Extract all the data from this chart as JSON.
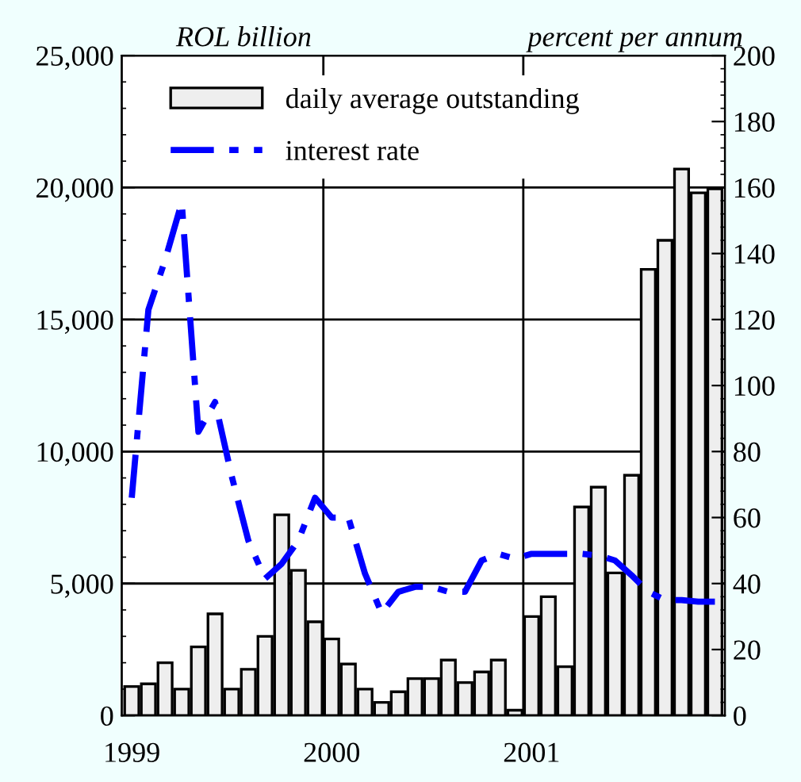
{
  "chart_data": {
    "type": "bar",
    "ylabel": "ROL billion",
    "y2label": "percent per annum",
    "categories": [
      "1999",
      null,
      null,
      null,
      null,
      null,
      null,
      null,
      null,
      null,
      null,
      null,
      "2000",
      null,
      null,
      null,
      null,
      null,
      null,
      null,
      null,
      null,
      null,
      null,
      "2001",
      null,
      null,
      null,
      null,
      null,
      null,
      null,
      null,
      null,
      null,
      null
    ],
    "series": [
      {
        "name": "daily average outstanding",
        "color": "#eeeeee",
        "values": [
          1100,
          1200,
          2000,
          1000,
          2600,
          3850,
          1000,
          1750,
          3000,
          7600,
          5500,
          3550,
          2900,
          1950,
          1000,
          500,
          900,
          1400,
          1400,
          2100,
          1250,
          1650,
          2100,
          200,
          3750,
          4500,
          1850,
          7900,
          8650,
          5400,
          9100,
          16900,
          18000,
          20700,
          19800,
          19950
        ]
      },
      {
        "name": "interest rate",
        "type": "line",
        "axis": "y2",
        "color": "#0000ff",
        "line_style": "dashed",
        "values": [
          66,
          123,
          138,
          155.5,
          86,
          95,
          72.5,
          53,
          41.5,
          46,
          53,
          66,
          60,
          60,
          43,
          31,
          37.5,
          39,
          39,
          37.5,
          37.5,
          47,
          49,
          47.5,
          49,
          49,
          49,
          49,
          48.5,
          47,
          42.5,
          37.5,
          35,
          35,
          34.5,
          34.5
        ]
      }
    ],
    "ylim": [
      0,
      25000
    ],
    "yticks": [
      {
        "value": 0,
        "label": "0"
      },
      {
        "value": 5000,
        "label": "5,000"
      },
      {
        "value": 10000,
        "label": "10,000"
      },
      {
        "value": 15000,
        "label": "15,000"
      },
      {
        "value": 20000,
        "label": "20,000"
      },
      {
        "value": 25000,
        "label": "25,000"
      }
    ],
    "y2lim": [
      0,
      200
    ],
    "y2ticks": [
      0,
      20,
      40,
      60,
      80,
      100,
      120,
      140,
      160,
      180,
      200
    ],
    "grid": true,
    "legend": "top"
  }
}
